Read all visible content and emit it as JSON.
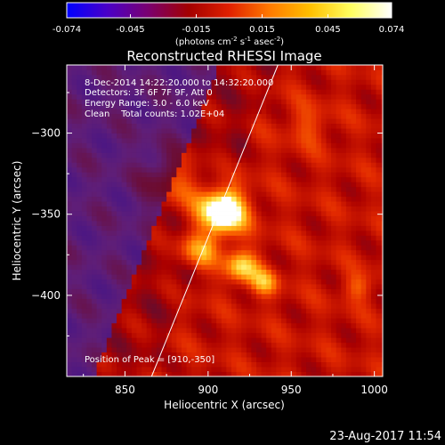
{
  "colorbar": {
    "tick_labels": [
      "-0.074",
      "-0.045",
      "-0.015",
      "0.015",
      "0.045",
      "0.074"
    ],
    "tick_values": [
      -0.074,
      -0.045,
      -0.015,
      0.015,
      0.045,
      0.074
    ],
    "range": [
      -0.074,
      0.074
    ],
    "unit_pre": "(photons cm",
    "unit_sup1": "-2",
    "unit_mid": " s",
    "unit_sup2": "-1",
    "unit_mid2": " asec",
    "unit_sup3": "-2",
    "unit_post": ")",
    "colors": [
      "#0000ff",
      "#4a00c8",
      "#7a0070",
      "#a30000",
      "#e02000",
      "#ff7a00",
      "#ffc000",
      "#ffff60",
      "#ffffff"
    ]
  },
  "chart_data": {
    "type": "heatmap",
    "title": "Reconstructed RHESSI Image",
    "xlabel": "Heliocentric X (arcsec)",
    "ylabel": "Heliocentric Y (arcsec)",
    "xlim": [
      815,
      1005
    ],
    "ylim": [
      -450,
      -258
    ],
    "x_ticks": [
      850,
      900,
      950,
      1000
    ],
    "y_ticks": [
      -300,
      -350,
      -400
    ],
    "info_lines": [
      "8-Dec-2014 14:22:20.000 to 14:32:20.000",
      "Detectors: 3F 6F 7F 9F, Att 0",
      "Energy Range: 3.0 - 6.0 keV",
      "Clean    Total counts: 1.02E+04"
    ],
    "peak_text": "Position of Peak = [910,-350]",
    "peak": {
      "x": 910,
      "y": -350
    },
    "limb_line": [
      [
        866,
        -450
      ],
      [
        942,
        -258
      ]
    ],
    "sources": [
      {
        "x": 908,
        "y": -348,
        "sigma": 10,
        "amp": 1.0
      },
      {
        "x": 920,
        "y": -382,
        "sigma": 7,
        "amp": 0.55
      },
      {
        "x": 893,
        "y": -372,
        "sigma": 8,
        "amp": 0.45
      },
      {
        "x": 934,
        "y": -392,
        "sigma": 6,
        "amp": 0.4
      },
      {
        "x": 880,
        "y": -330,
        "sigma": 12,
        "amp": 0.3
      },
      {
        "x": 960,
        "y": -295,
        "sigma": 9,
        "amp": 0.2
      },
      {
        "x": 990,
        "y": -395,
        "sigma": 6,
        "amp": 0.25
      }
    ]
  },
  "footer": {
    "date": "23-Aug-2017 11:54"
  }
}
